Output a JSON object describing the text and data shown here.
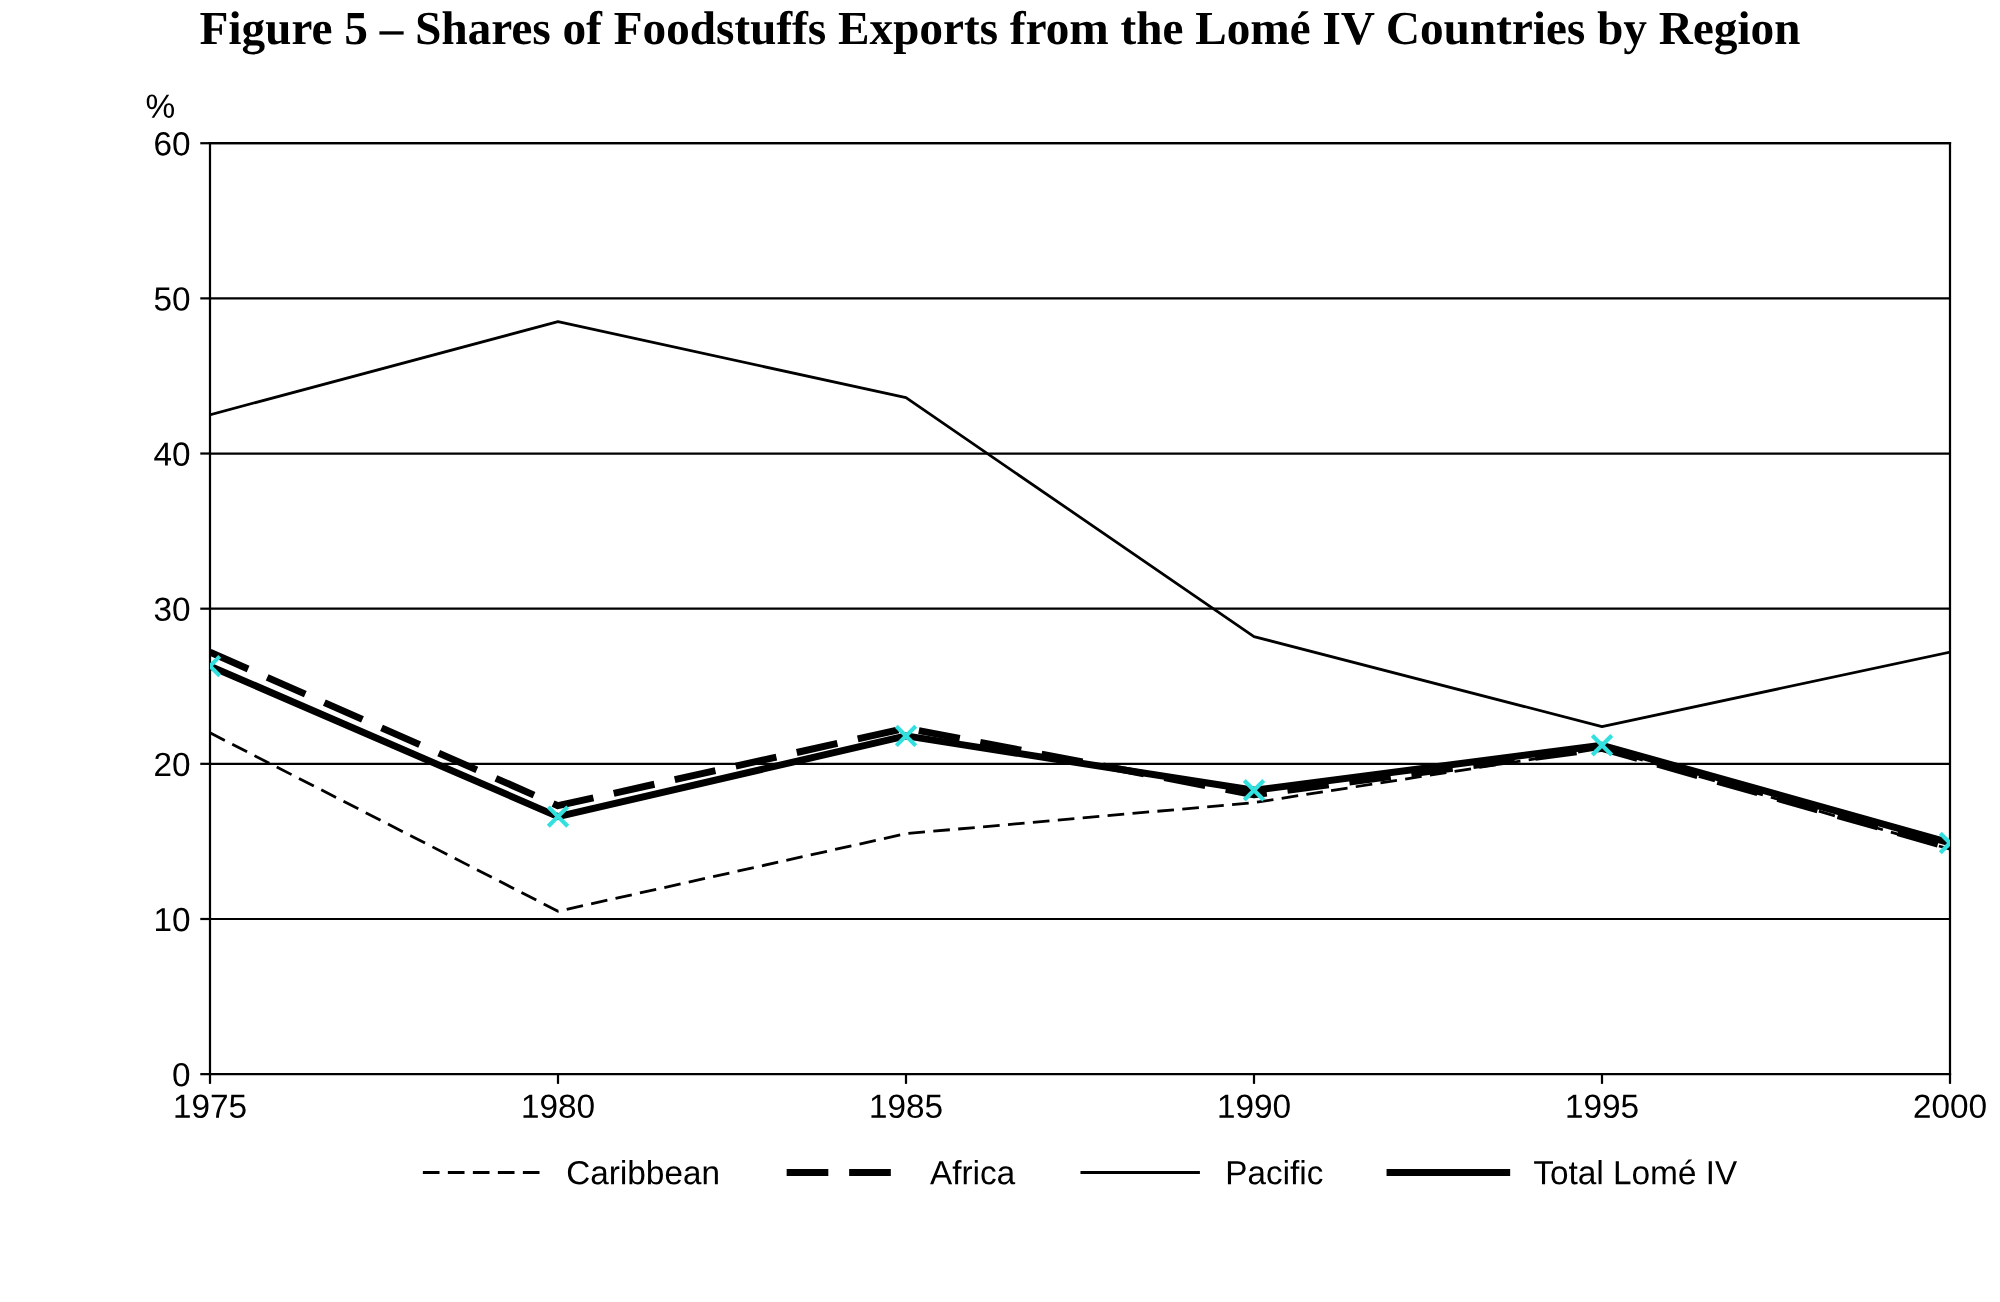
{
  "chart_data": {
    "type": "line",
    "title": "Figure 5 – Shares of Foodstuffs Exports from the Lomé IV Countries by Region",
    "ylabel": "%",
    "x": [
      1975,
      1980,
      1985,
      1990,
      1995,
      2000
    ],
    "xlim": [
      1975,
      2000
    ],
    "xticks": [
      1975,
      1980,
      1985,
      1990,
      1995,
      2000
    ],
    "ylim": [
      0,
      60
    ],
    "yticks": [
      0,
      10,
      20,
      30,
      40,
      50,
      60
    ],
    "grid": "y",
    "legend": "bottom",
    "marker": "none",
    "series": [
      {
        "name": "Caribbean",
        "color": "#000000",
        "line_style": "dashed",
        "values": [
          22,
          10.5,
          15.5,
          17.5,
          21,
          14.5
        ]
      },
      {
        "name": "Africa",
        "color": "#000000",
        "line_style": "dashed",
        "values": [
          27.2,
          17.3,
          22.3,
          18,
          21,
          14.6
        ]
      },
      {
        "name": "Pacific",
        "color": "#000000",
        "line_style": "solid",
        "values": [
          42.5,
          48.5,
          43.6,
          28.2,
          22.4,
          27.2
        ]
      },
      {
        "name": "Total Lomé IV",
        "color": "#000000",
        "line_style": "solid",
        "marker": "cross",
        "values": [
          26.3,
          16.6,
          21.8,
          18.3,
          21.2,
          14.9
        ]
      }
    ]
  }
}
